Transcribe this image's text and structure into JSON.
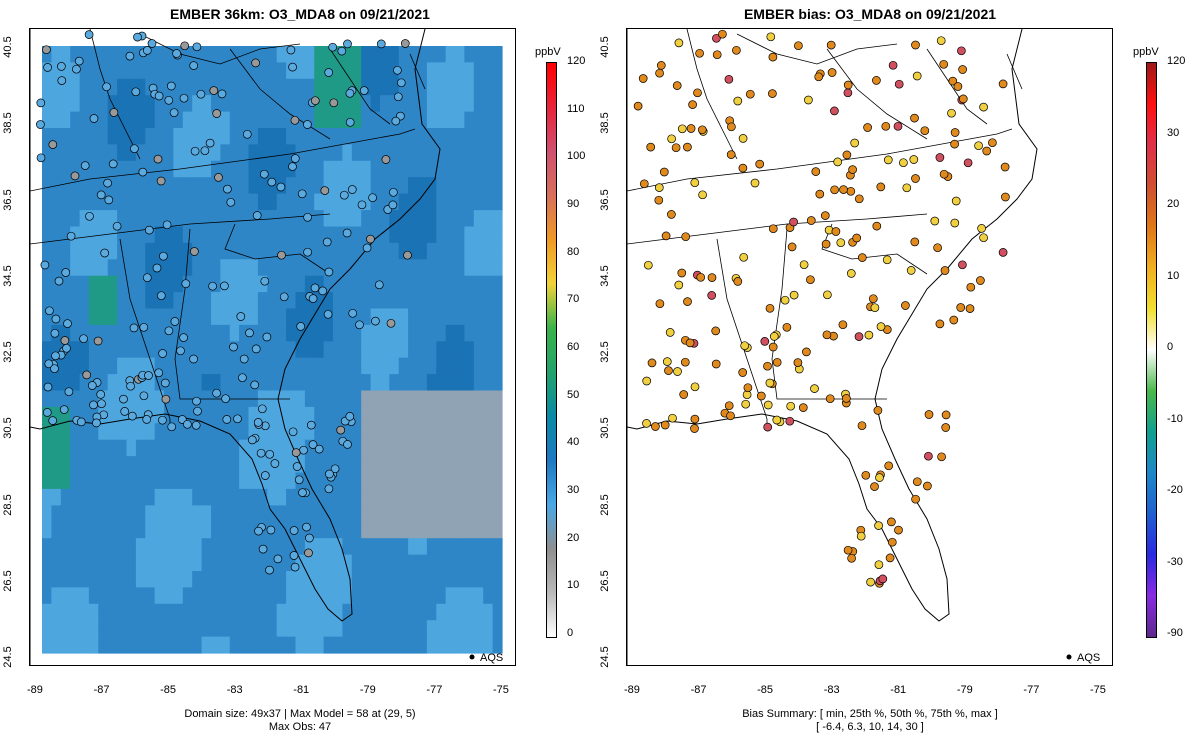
{
  "left": {
    "title": "EMBER 36km: O3_MDA8 on 09/21/2021",
    "caption_line1": "Domain size: 49x37 | Max Model = 58 at (29, 5)",
    "caption_line2": "Max Obs: 47",
    "colorbar_unit": "ppbV",
    "colorbar_ticks": [
      "120",
      "110",
      "100",
      "90",
      "80",
      "70",
      "60",
      "50",
      "40",
      "30",
      "20",
      "10",
      "0"
    ],
    "colorbar_colors": [
      "#ffffff",
      "#b9b9b9",
      "#8f8f8f",
      "#4aa8e6",
      "#1d79c2",
      "#0a8aa6",
      "#22a36b",
      "#3ab34a",
      "#f2d33a",
      "#f09a25",
      "#d8705a",
      "#d05070",
      "#e8243a",
      "#ff0000"
    ],
    "legend": "AQS"
  },
  "right": {
    "title": "EMBER bias: O3_MDA8 on 09/21/2021",
    "caption_line1": "Bias Summary: [ min, 25th %, 50th %, 75th %, max ]",
    "caption_line2": "[ -6.4,   6.3,   10,   14,   30 ]",
    "colorbar_unit": "ppbV",
    "colorbar_ticks": [
      "120",
      "30",
      "20",
      "10",
      "0",
      "-10",
      "-20",
      "-30",
      "-90"
    ],
    "colorbar_colors": [
      "#5c2a8a",
      "#8a2be2",
      "#2a2ae0",
      "#2060d0",
      "#1e88c8",
      "#10a090",
      "#4ab84a",
      "#ffffff",
      "#f2e030",
      "#f0b020",
      "#e07818",
      "#d05030",
      "#e0304a",
      "#ff1010",
      "#a01818"
    ],
    "legend": "AQS"
  },
  "axes": {
    "x_ticks": [
      "-89",
      "-87",
      "-85",
      "-83",
      "-81",
      "-79",
      "-77",
      "-75"
    ],
    "y_ticks": [
      "40.5",
      "38.5",
      "36.5",
      "34.5",
      "32.5",
      "30.5",
      "28.5",
      "26.5",
      "24.5"
    ]
  },
  "colors": {
    "model_blue_dark": "#1a73b5",
    "model_blue_mid": "#2f86c7",
    "model_blue_light": "#4ea6df",
    "model_green": "#1f9a86",
    "model_grey": "#8fa3b5",
    "obs_fill": "#5aaae0",
    "bias_orange": "#e08a1e",
    "bias_yellow": "#f0d040",
    "bias_red": "#d05060"
  }
}
